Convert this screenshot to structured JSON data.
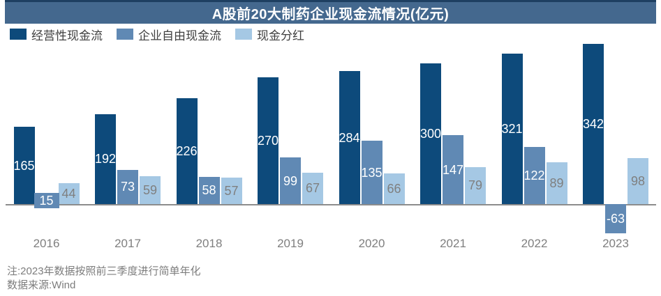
{
  "title": "A股前20大制药企业现金流情况(亿元)",
  "title_bar": {
    "background": "#44688e",
    "top_border": "#1e3f61",
    "text_color": "#ffffff"
  },
  "chart_data": {
    "type": "bar",
    "categories": [
      "2016",
      "2017",
      "2018",
      "2019",
      "2020",
      "2021",
      "2022",
      "2023"
    ],
    "series": [
      {
        "name": "经营性现金流",
        "color": "#0d4a7b",
        "label_color": "#ffffff",
        "values": [
          165,
          192,
          226,
          270,
          284,
          300,
          321,
          342
        ]
      },
      {
        "name": "企业自由现金流",
        "color": "#6089b4",
        "label_color": "#ffffff",
        "values": [
          15,
          73,
          58,
          99,
          135,
          147,
          122,
          -63
        ]
      },
      {
        "name": "现金分红",
        "color": "#a5c8e4",
        "label_color": "#7f7f7f",
        "values": [
          44,
          59,
          57,
          67,
          66,
          79,
          89,
          98
        ]
      }
    ],
    "title": "A股前20大制药企业现金流情况(亿元)",
    "xlabel": "",
    "ylabel": "",
    "value_axis": "hidden",
    "grid": false,
    "legend_position": "top-left",
    "axis_line_color": "#8c8c8c",
    "category_label_color": "#7f7f7f"
  },
  "notes": {
    "note": "注:2023年数据按照前三季度进行简单年化",
    "source": "数据来源:Wind"
  }
}
